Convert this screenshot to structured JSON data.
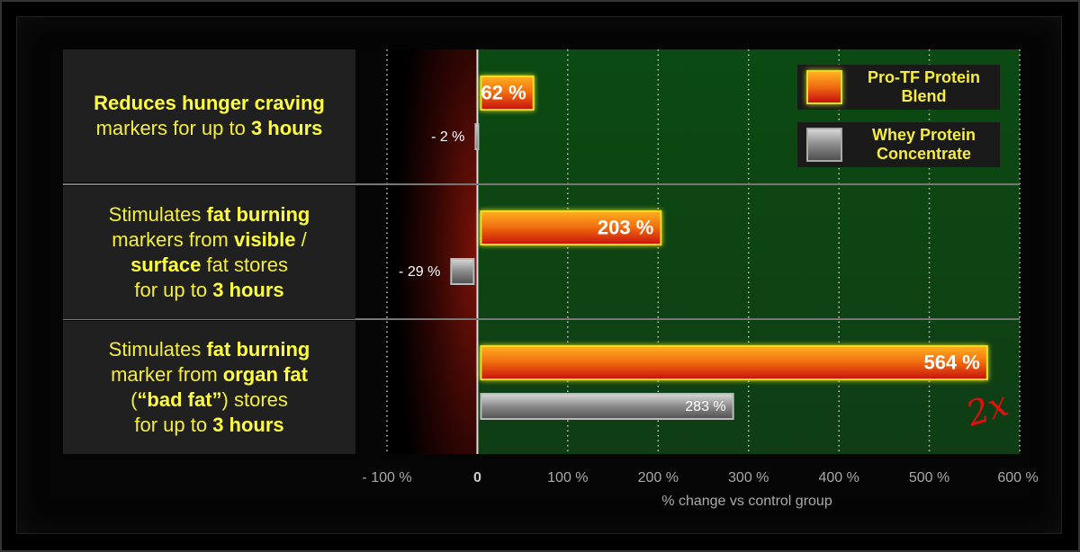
{
  "chart_data": {
    "type": "hbar",
    "categories": [
      [
        [
          {
            "text": "Reduces hunger craving",
            "bold": true
          }
        ],
        [
          {
            "text": "markers for up to ",
            "bold": false
          },
          {
            "text": "3 hours",
            "bold": true
          }
        ]
      ],
      [
        [
          {
            "text": "Stimulates ",
            "bold": false
          },
          {
            "text": "fat burning",
            "bold": true
          }
        ],
        [
          {
            "text": "markers from ",
            "bold": false
          },
          {
            "text": "visible",
            "bold": true
          },
          {
            "text": " /",
            "bold": false
          }
        ],
        [
          {
            "text": "surface",
            "bold": true
          },
          {
            "text": " fat stores",
            "bold": false
          }
        ],
        [
          {
            "text": "for up to ",
            "bold": false
          },
          {
            "text": "3 hours",
            "bold": true
          }
        ]
      ],
      [
        [
          {
            "text": "Stimulates ",
            "bold": false
          },
          {
            "text": "fat burning",
            "bold": true
          }
        ],
        [
          {
            "text": "marker from ",
            "bold": false
          },
          {
            "text": "organ fat",
            "bold": true
          }
        ],
        [
          {
            "text": "(",
            "bold": false
          },
          {
            "text": "“bad fat”",
            "bold": true
          },
          {
            "text": ") stores",
            "bold": false
          }
        ],
        [
          {
            "text": "for up to ",
            "bold": false
          },
          {
            "text": "3 hours",
            "bold": true
          }
        ]
      ]
    ],
    "series": [
      {
        "name": "Pro-TF Protein Blend",
        "color": "#f06a10",
        "values": [
          62,
          203,
          564
        ],
        "value_labels": [
          "62 %",
          "203 %",
          "564 %"
        ]
      },
      {
        "name": "Whey Protein Concentrate",
        "color": "#8a8a8a",
        "values": [
          -2,
          -29,
          283
        ],
        "value_labels": [
          "- 2 %",
          "- 29 %",
          "283 %"
        ]
      }
    ],
    "xlim": [
      -100,
      600
    ],
    "xticks": [
      {
        "value": -100,
        "label": "- 100 %"
      },
      0,
      {
        "value": 100,
        "label": "100 %"
      },
      {
        "value": 200,
        "label": "200 %"
      },
      {
        "value": 300,
        "label": "300 %"
      },
      {
        "value": 400,
        "label": "400 %"
      },
      {
        "value": 500,
        "label": "500 %"
      },
      {
        "value": 600,
        "label": "600 %"
      }
    ],
    "x_label": "% change vs control group",
    "annotation": "2x",
    "grid": true
  }
}
